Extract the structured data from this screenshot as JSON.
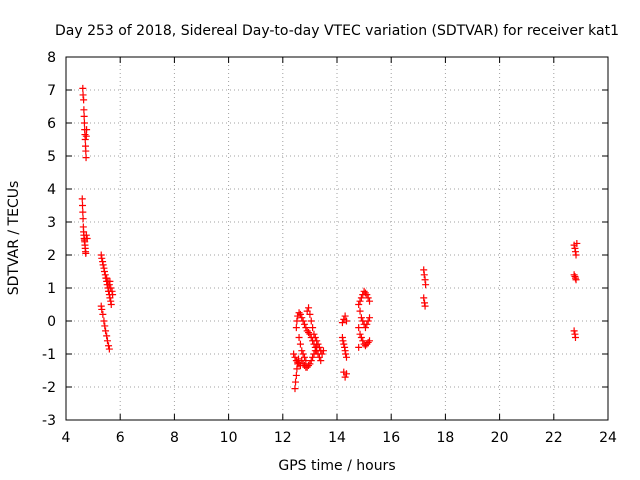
{
  "chart_data": {
    "type": "scatter",
    "title": "Day 253 of 2018, Sidereal Day-to-day VTEC variation (SDTVAR) for receiver kat1",
    "xlabel": "GPS time / hours",
    "ylabel": "SDTVAR / TECUs",
    "xlim": [
      4,
      24
    ],
    "ylim": [
      -3,
      8
    ],
    "x_ticks": [
      4,
      6,
      8,
      10,
      12,
      14,
      16,
      18,
      20,
      22,
      24
    ],
    "y_ticks": [
      -3,
      -2,
      -1,
      0,
      1,
      2,
      3,
      4,
      5,
      6,
      7,
      8
    ],
    "grid": true,
    "marker": "+",
    "color": "#ff0000",
    "series": [
      {
        "name": "kat1",
        "points": [
          [
            4.62,
            7.05
          ],
          [
            4.63,
            6.85
          ],
          [
            4.65,
            6.7
          ],
          [
            4.66,
            6.4
          ],
          [
            4.67,
            6.2
          ],
          [
            4.68,
            6.0
          ],
          [
            4.69,
            5.8
          ],
          [
            4.7,
            5.65
          ],
          [
            4.71,
            5.5
          ],
          [
            4.72,
            5.3
          ],
          [
            4.73,
            5.15
          ],
          [
            4.74,
            4.95
          ],
          [
            4.75,
            5.6
          ],
          [
            4.76,
            5.8
          ],
          [
            4.6,
            3.7
          ],
          [
            4.61,
            3.5
          ],
          [
            4.62,
            3.3
          ],
          [
            4.63,
            3.1
          ],
          [
            4.64,
            2.85
          ],
          [
            4.65,
            2.7
          ],
          [
            4.66,
            2.6
          ],
          [
            4.67,
            2.5
          ],
          [
            4.68,
            2.45
          ],
          [
            4.69,
            2.4
          ],
          [
            4.7,
            2.3
          ],
          [
            4.71,
            2.2
          ],
          [
            4.72,
            2.1
          ],
          [
            4.73,
            2.05
          ],
          [
            4.75,
            2.6
          ],
          [
            4.78,
            2.5
          ],
          [
            5.3,
            2.0
          ],
          [
            5.32,
            1.9
          ],
          [
            5.35,
            1.8
          ],
          [
            5.37,
            1.7
          ],
          [
            5.4,
            1.6
          ],
          [
            5.42,
            1.5
          ],
          [
            5.45,
            1.4
          ],
          [
            5.47,
            1.3
          ],
          [
            5.5,
            1.2
          ],
          [
            5.52,
            1.1
          ],
          [
            5.55,
            1.0
          ],
          [
            5.57,
            0.9
          ],
          [
            5.6,
            0.8
          ],
          [
            5.62,
            0.7
          ],
          [
            5.65,
            0.6
          ],
          [
            5.67,
            0.5
          ],
          [
            5.5,
            1.3
          ],
          [
            5.55,
            1.2
          ],
          [
            5.6,
            1.1
          ],
          [
            5.65,
            1.0
          ],
          [
            5.7,
            0.9
          ],
          [
            5.72,
            0.8
          ],
          [
            5.58,
            0.9
          ],
          [
            5.62,
            1.2
          ],
          [
            5.3,
            0.45
          ],
          [
            5.32,
            0.35
          ],
          [
            5.36,
            0.2
          ],
          [
            5.4,
            0.0
          ],
          [
            5.43,
            -0.15
          ],
          [
            5.46,
            -0.3
          ],
          [
            5.5,
            -0.45
          ],
          [
            5.53,
            -0.6
          ],
          [
            5.57,
            -0.75
          ],
          [
            5.6,
            -0.85
          ],
          [
            12.45,
            -2.05
          ],
          [
            12.47,
            -1.85
          ],
          [
            12.5,
            -1.65
          ],
          [
            12.52,
            -1.45
          ],
          [
            12.55,
            -1.3
          ],
          [
            12.58,
            -1.15
          ],
          [
            12.4,
            -1.0
          ],
          [
            12.45,
            -1.1
          ],
          [
            12.5,
            -1.2
          ],
          [
            12.55,
            -1.25
          ],
          [
            12.6,
            -1.3
          ],
          [
            12.65,
            -1.35
          ],
          [
            12.5,
            -0.2
          ],
          [
            12.52,
            0.0
          ],
          [
            12.55,
            0.15
          ],
          [
            12.6,
            0.25
          ],
          [
            12.65,
            0.2
          ],
          [
            12.7,
            0.1
          ],
          [
            12.75,
            0.0
          ],
          [
            12.8,
            -0.1
          ],
          [
            12.85,
            -0.2
          ],
          [
            12.9,
            -0.3
          ],
          [
            12.95,
            -0.35
          ],
          [
            13.0,
            -0.4
          ],
          [
            13.05,
            -0.5
          ],
          [
            13.1,
            -0.6
          ],
          [
            13.15,
            -0.7
          ],
          [
            13.2,
            -0.8
          ],
          [
            13.25,
            -0.9
          ],
          [
            13.3,
            -1.0
          ],
          [
            13.35,
            -1.1
          ],
          [
            13.4,
            -1.2
          ],
          [
            12.7,
            -1.2
          ],
          [
            12.75,
            -1.3
          ],
          [
            12.8,
            -1.35
          ],
          [
            12.85,
            -1.4
          ],
          [
            12.9,
            -1.4
          ],
          [
            12.95,
            -1.35
          ],
          [
            13.0,
            -1.3
          ],
          [
            13.05,
            -1.2
          ],
          [
            13.1,
            -1.1
          ],
          [
            13.15,
            -1.0
          ],
          [
            13.2,
            -0.9
          ],
          [
            13.25,
            -0.8
          ],
          [
            12.9,
            0.3
          ],
          [
            12.95,
            0.4
          ],
          [
            13.0,
            0.2
          ],
          [
            13.05,
            0.0
          ],
          [
            13.1,
            -0.2
          ],
          [
            13.15,
            -0.4
          ],
          [
            13.2,
            -0.5
          ],
          [
            13.25,
            -0.6
          ],
          [
            13.3,
            -0.7
          ],
          [
            13.35,
            -0.8
          ],
          [
            13.4,
            -0.9
          ],
          [
            13.45,
            -1.0
          ],
          [
            13.5,
            -0.9
          ],
          [
            12.6,
            -0.5
          ],
          [
            12.65,
            -0.7
          ],
          [
            12.7,
            -0.9
          ],
          [
            12.75,
            -1.0
          ],
          [
            12.8,
            -1.1
          ],
          [
            12.85,
            -1.2
          ],
          [
            14.25,
            -1.55
          ],
          [
            14.3,
            -1.7
          ],
          [
            14.35,
            -1.6
          ],
          [
            14.2,
            -0.5
          ],
          [
            14.22,
            -0.6
          ],
          [
            14.25,
            -0.7
          ],
          [
            14.28,
            -0.8
          ],
          [
            14.3,
            -0.9
          ],
          [
            14.32,
            -1.0
          ],
          [
            14.35,
            -1.1
          ],
          [
            14.2,
            -0.05
          ],
          [
            14.25,
            0.05
          ],
          [
            14.3,
            0.15
          ],
          [
            14.35,
            0.0
          ],
          [
            14.8,
            0.5
          ],
          [
            14.85,
            0.6
          ],
          [
            14.9,
            0.7
          ],
          [
            14.95,
            0.8
          ],
          [
            15.0,
            0.9
          ],
          [
            15.05,
            0.85
          ],
          [
            15.1,
            0.8
          ],
          [
            15.15,
            0.7
          ],
          [
            15.2,
            0.6
          ],
          [
            14.85,
            0.3
          ],
          [
            14.9,
            0.1
          ],
          [
            14.95,
            0.0
          ],
          [
            15.0,
            -0.1
          ],
          [
            15.05,
            -0.2
          ],
          [
            15.1,
            -0.1
          ],
          [
            15.15,
            0.0
          ],
          [
            15.2,
            0.1
          ],
          [
            14.8,
            -0.2
          ],
          [
            14.85,
            -0.4
          ],
          [
            14.9,
            -0.5
          ],
          [
            14.95,
            -0.6
          ],
          [
            15.0,
            -0.7
          ],
          [
            15.05,
            -0.75
          ],
          [
            15.1,
            -0.7
          ],
          [
            15.15,
            -0.65
          ],
          [
            15.2,
            -0.6
          ],
          [
            14.8,
            -0.8
          ],
          [
            17.2,
            1.55
          ],
          [
            17.22,
            1.4
          ],
          [
            17.25,
            1.25
          ],
          [
            17.27,
            1.1
          ],
          [
            17.2,
            0.7
          ],
          [
            17.23,
            0.55
          ],
          [
            17.25,
            0.45
          ],
          [
            22.75,
            2.3
          ],
          [
            22.78,
            2.2
          ],
          [
            22.8,
            2.1
          ],
          [
            22.82,
            2.0
          ],
          [
            22.85,
            2.35
          ],
          [
            22.75,
            1.4
          ],
          [
            22.78,
            1.35
          ],
          [
            22.8,
            1.3
          ],
          [
            22.82,
            1.25
          ],
          [
            22.75,
            -0.3
          ],
          [
            22.78,
            -0.4
          ],
          [
            22.8,
            -0.5
          ]
        ]
      }
    ]
  }
}
